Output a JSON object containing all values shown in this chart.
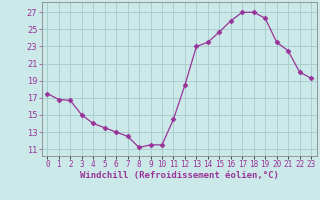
{
  "x": [
    0,
    1,
    2,
    3,
    4,
    5,
    6,
    7,
    8,
    9,
    10,
    11,
    12,
    13,
    14,
    15,
    16,
    17,
    18,
    19,
    20,
    21,
    22,
    23
  ],
  "y": [
    17.5,
    16.8,
    16.7,
    15.0,
    14.0,
    13.5,
    13.0,
    12.5,
    11.2,
    11.5,
    11.5,
    14.5,
    18.5,
    23.0,
    23.5,
    24.7,
    26.0,
    27.0,
    27.0,
    26.3,
    23.5,
    22.5,
    20.0,
    19.3
  ],
  "line_color": "#993399",
  "marker": "D",
  "marker_size": 2.5,
  "bg_color": "#cce9e9",
  "grid_color": "#aacfcf",
  "xlabel": "Windchill (Refroidissement éolien,°C)",
  "xlabel_color": "#993399",
  "ylabel_ticks": [
    11,
    13,
    15,
    17,
    19,
    21,
    23,
    25,
    27
  ],
  "xtick_labels": [
    "0",
    "1",
    "2",
    "3",
    "4",
    "5",
    "6",
    "7",
    "8",
    "9",
    "10",
    "11",
    "12",
    "13",
    "14",
    "15",
    "16",
    "17",
    "18",
    "19",
    "20",
    "21",
    "22",
    "23"
  ],
  "ylim": [
    10.2,
    28.2
  ],
  "xlim": [
    -0.5,
    23.5
  ]
}
